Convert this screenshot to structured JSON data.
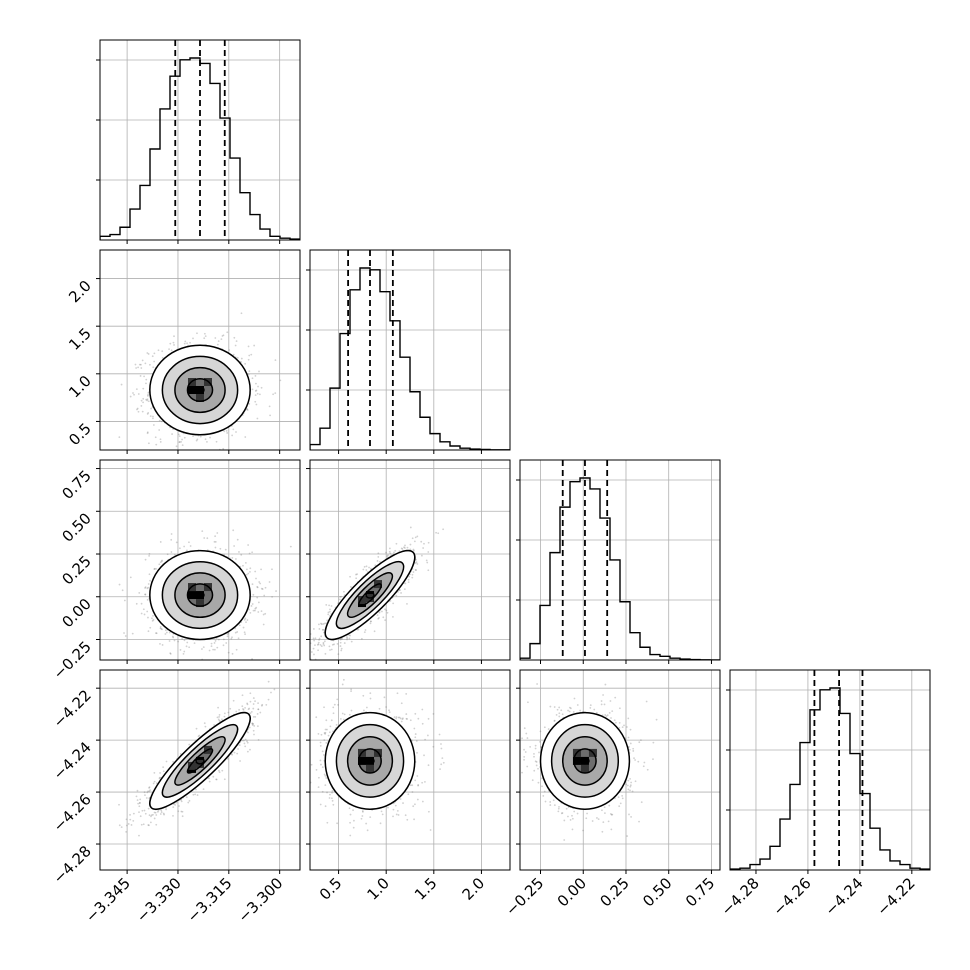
{
  "chart_data": {
    "type": "corner",
    "n_params": 4,
    "params": [
      {
        "ticks": [
          -3.345,
          -3.33,
          -3.315,
          -3.3
        ],
        "tick_labels": [
          "−3.345",
          "−3.330",
          "−3.315",
          "−3.300"
        ],
        "range": [
          -3.353,
          -3.294
        ],
        "quantiles": [
          -3.3308,
          -3.3235,
          -3.3162
        ],
        "hist": [
          0.02,
          0.03,
          0.07,
          0.17,
          0.3,
          0.5,
          0.72,
          0.9,
          0.99,
          1.0,
          0.97,
          0.86,
          0.67,
          0.45,
          0.26,
          0.14,
          0.06,
          0.02,
          0.01,
          0.005
        ]
      },
      {
        "ticks": [
          0.5,
          1.0,
          1.5,
          2.0
        ],
        "tick_labels": [
          "0.5",
          "1.0",
          "1.5",
          "2.0"
        ],
        "range": [
          0.2,
          2.3
        ],
        "quantiles": [
          0.6,
          0.83,
          1.07
        ],
        "hist": [
          0.03,
          0.12,
          0.34,
          0.64,
          0.88,
          1.0,
          0.99,
          0.87,
          0.71,
          0.51,
          0.32,
          0.18,
          0.09,
          0.045,
          0.022,
          0.01,
          0.005,
          0.003,
          0.001,
          0.001
        ]
      },
      {
        "ticks": [
          -0.25,
          0.0,
          0.25,
          0.5,
          0.75
        ],
        "tick_labels": [
          "−0.25",
          "0.00",
          "0.25",
          "0.50",
          "0.75"
        ],
        "range": [
          -0.37,
          0.8
        ],
        "quantiles": [
          -0.12,
          0.01,
          0.14
        ],
        "hist": [
          0.01,
          0.09,
          0.3,
          0.59,
          0.84,
          0.98,
          1.0,
          0.94,
          0.78,
          0.55,
          0.32,
          0.15,
          0.07,
          0.03,
          0.02,
          0.01,
          0.005,
          0.002,
          0.001,
          0.0
        ]
      },
      {
        "ticks": [
          -4.28,
          -4.26,
          -4.24,
          -4.22
        ],
        "tick_labels": [
          "−4.28",
          "−4.26",
          "−4.24",
          "−4.22"
        ],
        "range": [
          -4.29,
          -4.213
        ],
        "quantiles": [
          -4.2575,
          -4.248,
          -4.239
        ],
        "hist": [
          0.005,
          0.01,
          0.03,
          0.06,
          0.13,
          0.28,
          0.47,
          0.7,
          0.88,
          0.99,
          1.0,
          0.86,
          0.64,
          0.42,
          0.23,
          0.11,
          0.05,
          0.03,
          0.01,
          0.005
        ]
      }
    ],
    "pairs": [
      {
        "row": 1,
        "col": 0,
        "mean": [
          -3.3235,
          0.83
        ],
        "sd": [
          0.0074,
          0.235
        ],
        "rho": 0.0
      },
      {
        "row": 2,
        "col": 0,
        "mean": [
          -3.3235,
          0.01
        ],
        "sd": [
          0.0074,
          0.13
        ],
        "rho": 0.0
      },
      {
        "row": 2,
        "col": 1,
        "mean": [
          0.83,
          0.01
        ],
        "sd": [
          0.235,
          0.13
        ],
        "rho": 0.85
      },
      {
        "row": 3,
        "col": 0,
        "mean": [
          -3.3235,
          -4.248
        ],
        "sd": [
          0.0074,
          0.0093
        ],
        "rho": 0.88
      },
      {
        "row": 3,
        "col": 1,
        "mean": [
          0.83,
          -4.248
        ],
        "sd": [
          0.235,
          0.0093
        ],
        "rho": 0.0
      },
      {
        "row": 3,
        "col": 2,
        "mean": [
          0.01,
          -4.248
        ],
        "sd": [
          0.13,
          0.0093
        ],
        "rho": 0.0
      }
    ],
    "contour_levels_sigma": [
      0.5,
      1.0,
      1.5,
      2.0
    ],
    "grid": true,
    "colors": {
      "points": "#7a7a7a",
      "line": "#000000",
      "grid": "#b0b0b0",
      "dark_fill": "#000000"
    }
  }
}
